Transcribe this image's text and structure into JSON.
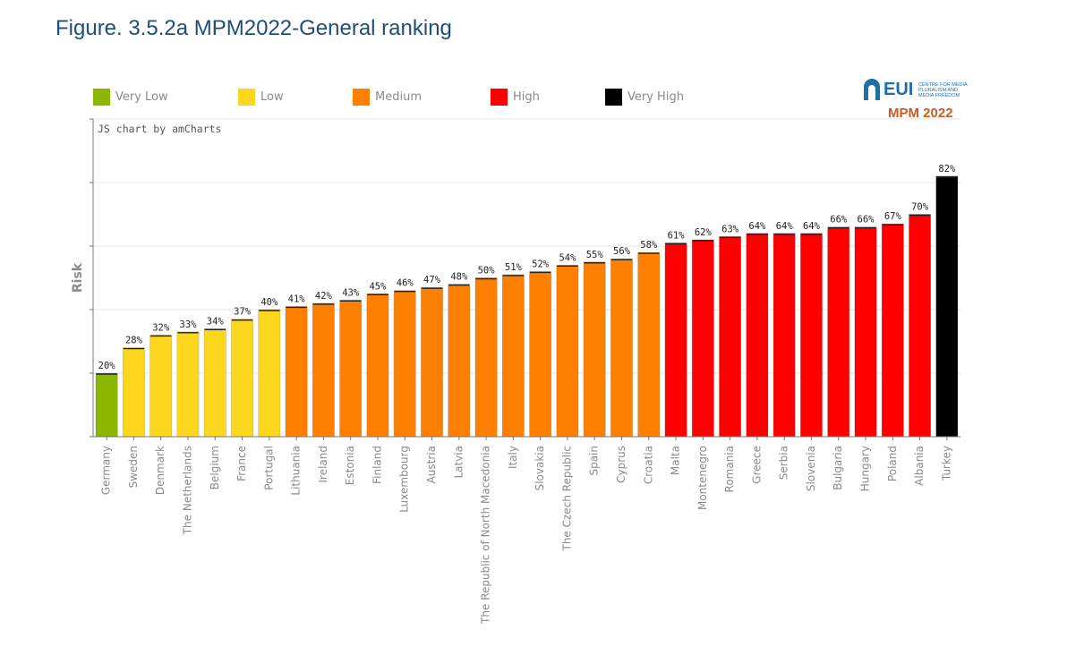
{
  "title": "Figure. 3.5.2a MPM2022-General ranking",
  "credit": "JS chart by amCharts",
  "logo": {
    "name": "EUI",
    "subtitle": "CENTRE FOR MEDIA PLURALISM AND MEDIA FREEDOM",
    "badge": "MPM 2022"
  },
  "legend": [
    {
      "label": "Very Low",
      "color": "#8db600"
    },
    {
      "label": "Low",
      "color": "#fcd71e"
    },
    {
      "label": "Medium",
      "color": "#ff8000"
    },
    {
      "label": "High",
      "color": "#ff0000"
    },
    {
      "label": "Very High",
      "color": "#000000"
    }
  ],
  "chart_data": {
    "type": "bar",
    "ylabel": "Risk",
    "xlabel": "",
    "ylim": [
      0,
      100
    ],
    "grid": true,
    "value_suffix": "%",
    "categories": [
      "Germany",
      "Sweden",
      "Denmark",
      "The Netherlands",
      "Belgium",
      "France",
      "Portugal",
      "Lithuania",
      "Ireland",
      "Estonia",
      "Finland",
      "Luxembourg",
      "Austria",
      "Latvia",
      "The Republic of North Macedonia",
      "Italy",
      "Slovakia",
      "The Czech Republic",
      "Spain",
      "Cyprus",
      "Croatia",
      "Malta",
      "Montenegro",
      "Romania",
      "Greece",
      "Serbia",
      "Slovenia",
      "Bulgaria",
      "Hungary",
      "Poland",
      "Albania",
      "Turkey"
    ],
    "values": [
      20,
      28,
      32,
      33,
      34,
      37,
      40,
      41,
      42,
      43,
      45,
      46,
      47,
      48,
      50,
      51,
      52,
      54,
      55,
      56,
      58,
      61,
      62,
      63,
      64,
      64,
      64,
      66,
      66,
      67,
      70,
      82
    ],
    "risk_levels": [
      "Very Low",
      "Low",
      "Low",
      "Low",
      "Low",
      "Low",
      "Low",
      "Medium",
      "Medium",
      "Medium",
      "Medium",
      "Medium",
      "Medium",
      "Medium",
      "Medium",
      "Medium",
      "Medium",
      "Medium",
      "Medium",
      "Medium",
      "Medium",
      "High",
      "High",
      "High",
      "High",
      "High",
      "High",
      "High",
      "High",
      "High",
      "High",
      "Very High"
    ]
  }
}
